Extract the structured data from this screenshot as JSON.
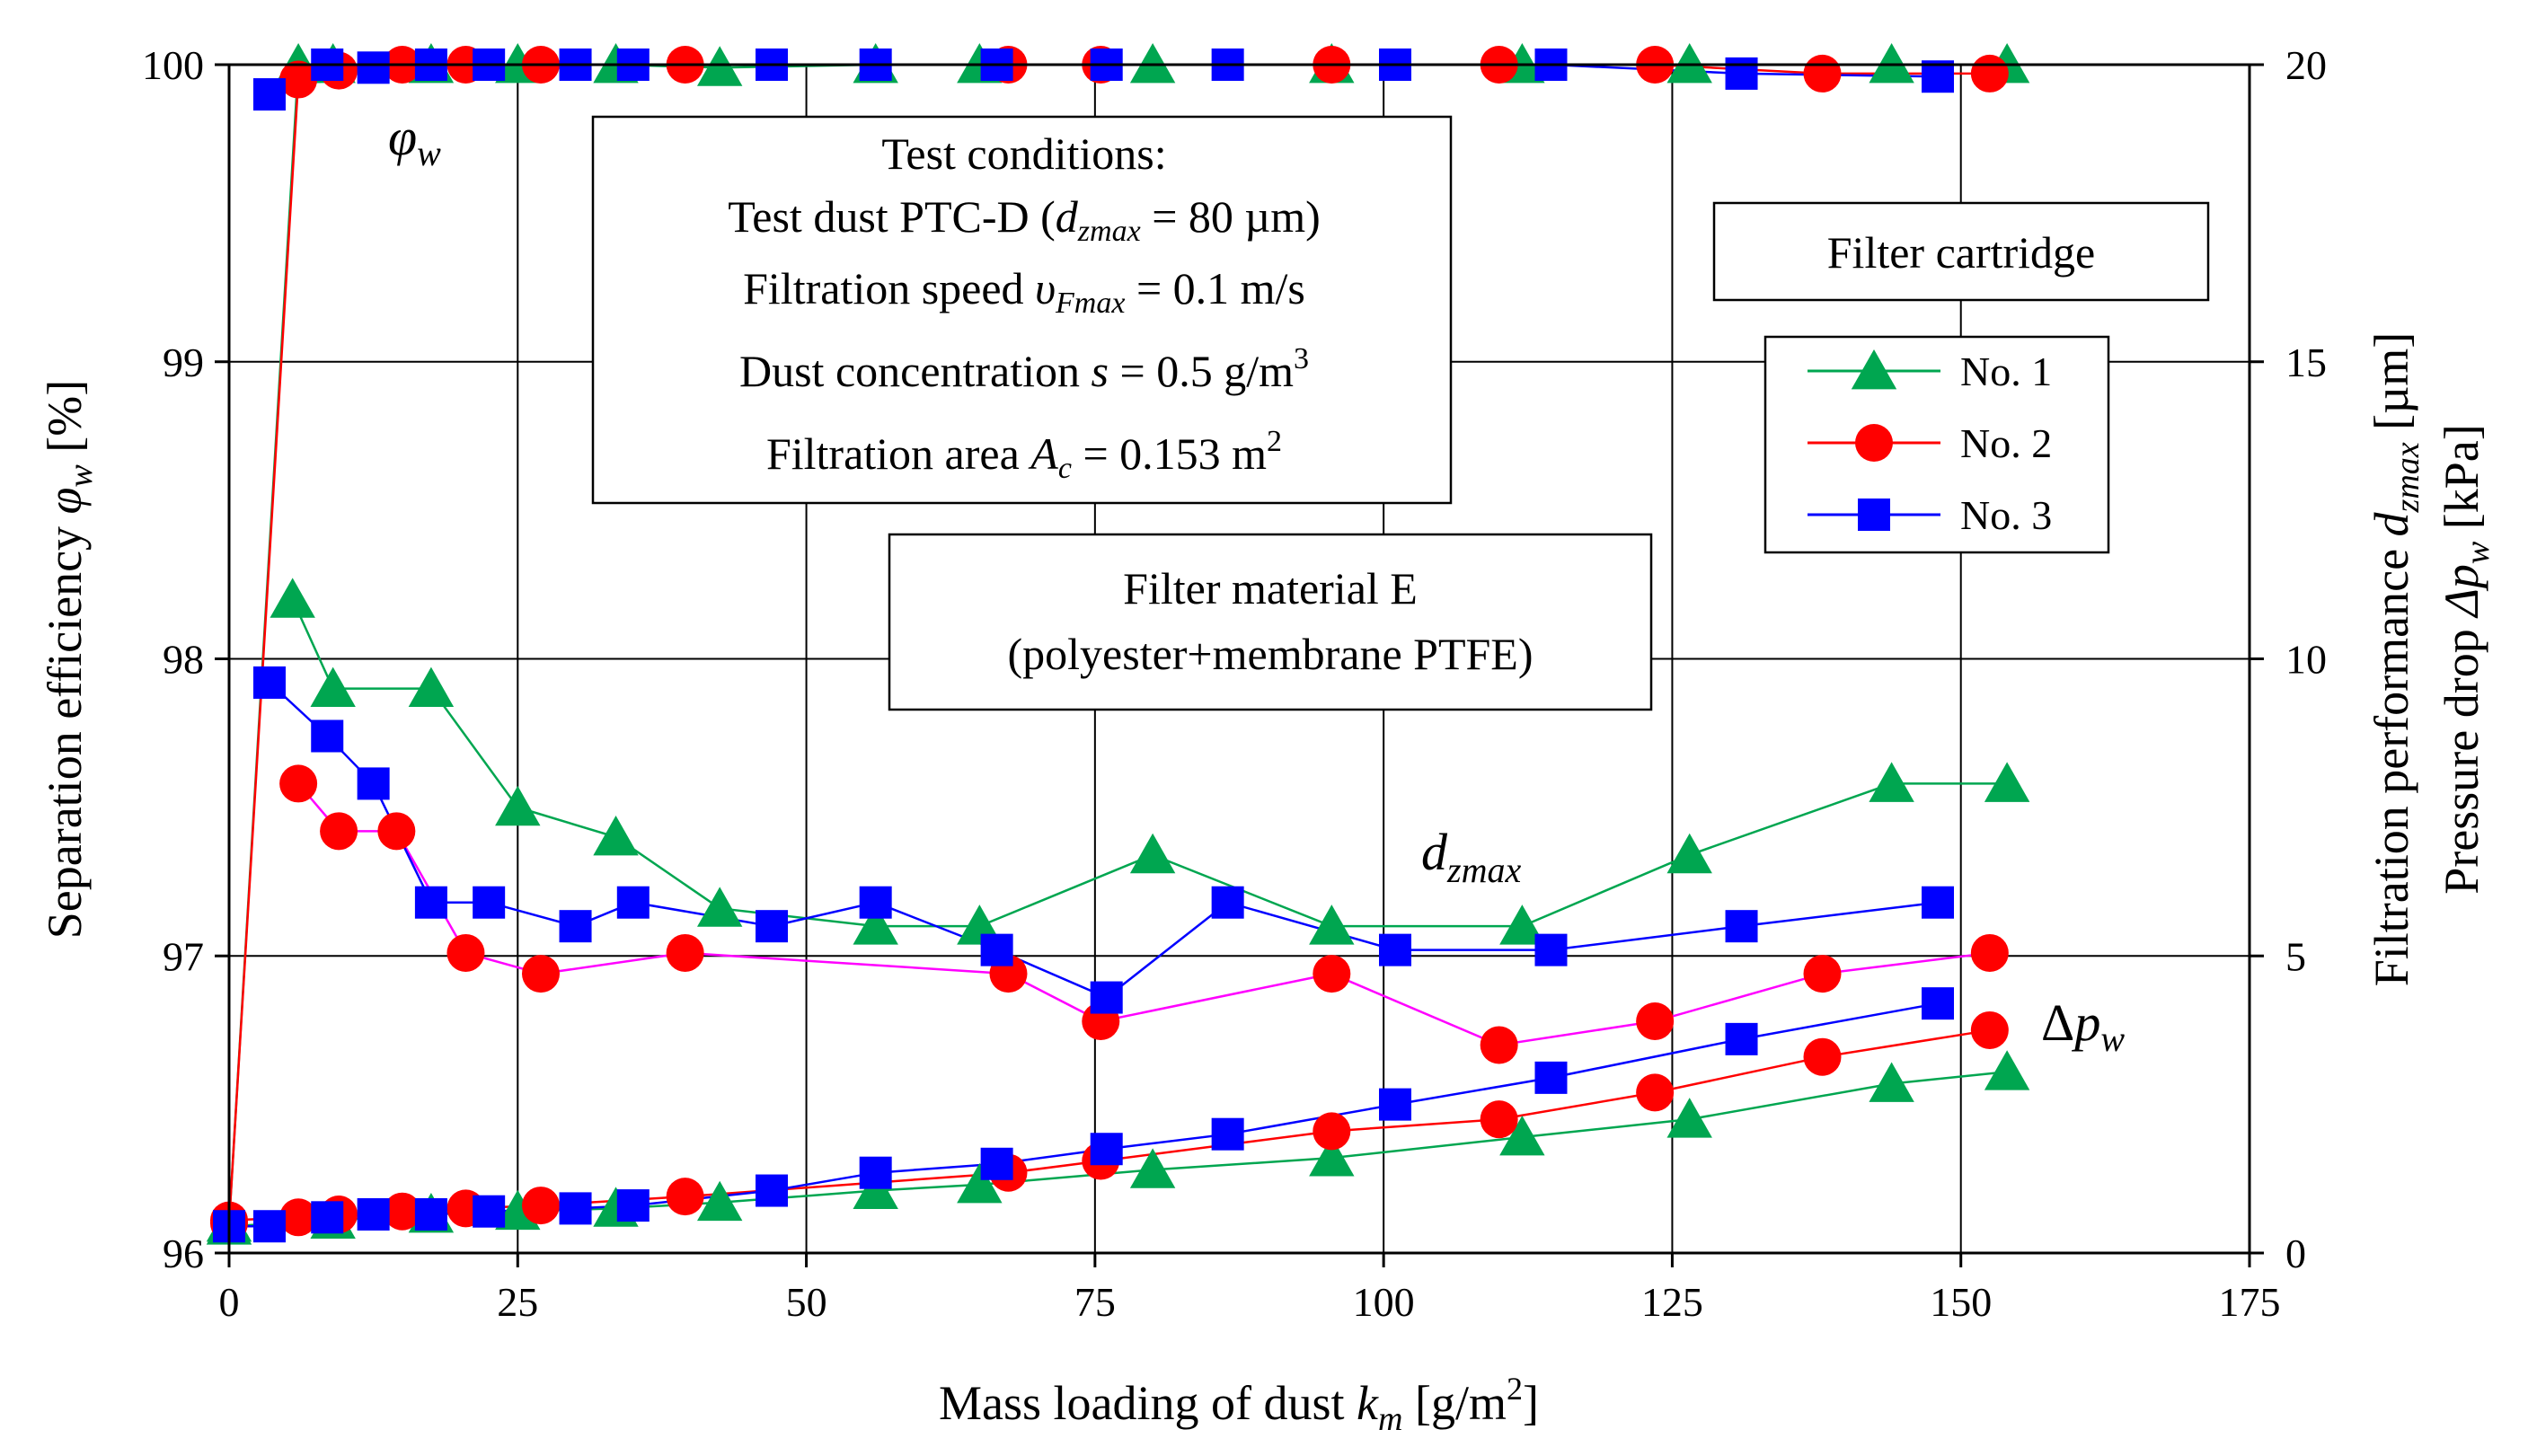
{
  "chart_data": {
    "type": "line",
    "x_axis": {
      "label": "Mass loading of dust",
      "label_var": "k",
      "label_var_sub": "m",
      "label_unit": "[g/m2]",
      "label_unit_pre": "[g/m",
      "label_unit_sup": "2",
      "label_unit_post": "]",
      "range": [
        0,
        175
      ],
      "ticks": [
        "0",
        "25",
        "50",
        "75",
        "100",
        "125",
        "150",
        "175"
      ]
    },
    "y_axis_left": {
      "label": "Separation efficiency",
      "label_var": "φ",
      "label_var_sub": "w",
      "label_unit": "[%]",
      "range": [
        96,
        100
      ],
      "ticks": [
        "96",
        "97",
        "98",
        "99",
        "100"
      ]
    },
    "y_axis_right": {
      "label_line1": "Filtration performance",
      "label_line1_var": "d",
      "label_line1_sub": "zmax",
      "label_line1_unit": "[µm]",
      "label_line2": "Pressure drop",
      "label_line2_var": "Δp",
      "label_line2_sub": "w",
      "label_line2_unit": "[kPa]",
      "range": [
        0,
        20
      ],
      "ticks": [
        "0",
        "5",
        "10",
        "15",
        "20"
      ]
    },
    "grid": true,
    "legend": {
      "title": "Filter cartridge",
      "placement": "right",
      "entries": [
        "No. 1",
        "No. 2",
        "No. 3"
      ]
    },
    "series_colors": {
      "No. 1": "#00a650",
      "No. 2": "#ff0000",
      "No. 3": "#0000ff",
      "No. 2 dzmax line": "#ff00ff"
    },
    "annotations": {
      "phi": {
        "var": "φ",
        "sub": "w"
      },
      "dzmax": {
        "var": "d",
        "sub": "zmax"
      },
      "dp": {
        "pre": "Δ",
        "var": "p",
        "sub": "w"
      }
    },
    "conditions_box": {
      "title": "Test conditions:",
      "line1": {
        "pre": "Test dust PTC-D (",
        "var": "d",
        "sub": "zmax",
        "post": " = 80 µm)"
      },
      "line2": {
        "pre": "Filtration speed  ",
        "var": "υ",
        "sub": "Fmax",
        "post": " = 0.1 m/s"
      },
      "line3": {
        "pre": "Dust concentration ",
        "var": "s",
        "post": " = 0.5 g/m",
        "sup": "3"
      },
      "line4": {
        "pre": "Filtration area ",
        "var": "A",
        "sub": "c",
        "post": " = 0.153 m",
        "sup": "2"
      }
    },
    "material_box": {
      "line1": "Filter material E",
      "line2": "(polyester+membrane  PTFE)"
    },
    "series": [
      {
        "name": "No. 1",
        "quantity": "separation efficiency",
        "axis": "left",
        "x": [
          0,
          6,
          9,
          17.5,
          25,
          33.5,
          42.5,
          56,
          65,
          80,
          95.5,
          112,
          126.5,
          144,
          154
        ],
        "y": [
          96.1,
          100,
          100,
          100,
          100,
          100,
          99.99,
          100,
          100,
          100,
          100,
          100,
          100,
          100,
          100
        ]
      },
      {
        "name": "No. 2",
        "quantity": "separation efficiency",
        "axis": "left",
        "x": [
          0,
          6,
          9.5,
          15,
          20.5,
          27,
          39.5,
          67.5,
          75.5,
          95.5,
          110,
          123.5,
          138,
          152.5
        ],
        "y": [
          96.1,
          99.95,
          99.98,
          100,
          100,
          100,
          100,
          100,
          100,
          100,
          100,
          100,
          99.97,
          99.97
        ]
      },
      {
        "name": "No. 3",
        "quantity": "separation efficiency",
        "axis": "left",
        "x": [
          3.5,
          8.5,
          12.5,
          17.5,
          22.5,
          30,
          35,
          47,
          56,
          66.5,
          76,
          86.5,
          101,
          114.5,
          131,
          148
        ],
        "y": [
          99.9,
          100,
          99.99,
          100,
          100,
          100,
          100,
          100,
          100,
          100,
          100,
          100,
          100,
          100,
          99.97,
          99.96
        ]
      },
      {
        "name": "No. 1",
        "quantity": "filtration performance dzmax",
        "axis": "right",
        "x": [
          5.5,
          9,
          17.5,
          25,
          33.5,
          42.5,
          56,
          65,
          80,
          95.5,
          112,
          126.5,
          144,
          154
        ],
        "y": [
          11,
          9.5,
          9.5,
          7.5,
          7,
          5.8,
          5.5,
          5.5,
          6.7,
          5.5,
          5.5,
          6.7,
          7.9,
          7.9
        ]
      },
      {
        "name": "No. 2",
        "quantity": "filtration performance dzmax",
        "axis": "right",
        "x": [
          6,
          9.5,
          14.5,
          20.5,
          27,
          39.5,
          67.5,
          75.5,
          95.5,
          110,
          123.5,
          138,
          152.5
        ],
        "y": [
          7.9,
          7.1,
          7.1,
          5.05,
          4.7,
          5.05,
          4.7,
          3.9,
          4.7,
          3.5,
          3.9,
          4.7,
          5.05
        ]
      },
      {
        "name": "No. 3",
        "quantity": "filtration performance dzmax",
        "axis": "right",
        "x": [
          3.5,
          8.5,
          12.5,
          17.5,
          22.5,
          30,
          35,
          47,
          56,
          66.5,
          76,
          86.5,
          101,
          114.5,
          131,
          148
        ],
        "y": [
          9.6,
          8.7,
          7.9,
          5.9,
          5.9,
          5.5,
          5.9,
          5.5,
          5.9,
          5.1,
          4.3,
          5.9,
          5.1,
          5.1,
          5.5,
          5.9
        ]
      },
      {
        "name": "No. 1",
        "quantity": "pressure drop",
        "axis": "right",
        "x": [
          0,
          9,
          17.5,
          25,
          33.5,
          42.5,
          56,
          65,
          80,
          95.5,
          112,
          126.5,
          144,
          154
        ],
        "y": [
          0.45,
          0.55,
          0.65,
          0.7,
          0.75,
          0.85,
          1.05,
          1.15,
          1.4,
          1.6,
          1.95,
          2.25,
          2.85,
          3.05
        ]
      },
      {
        "name": "No. 2",
        "quantity": "pressure drop",
        "axis": "right",
        "x": [
          0,
          6,
          9.5,
          15,
          20.5,
          27,
          39.5,
          67.5,
          75.5,
          95.5,
          110,
          123.5,
          138,
          152.5
        ],
        "y": [
          0.55,
          0.6,
          0.65,
          0.7,
          0.75,
          0.8,
          0.95,
          1.35,
          1.55,
          2.05,
          2.25,
          2.7,
          3.3,
          3.75
        ]
      },
      {
        "name": "No. 3",
        "quantity": "pressure drop",
        "axis": "right",
        "x": [
          0,
          3.5,
          8.5,
          12.5,
          17.5,
          22.5,
          30,
          35,
          47,
          56,
          66.5,
          76,
          86.5,
          101,
          114.5,
          131,
          148
        ],
        "y": [
          0.45,
          0.45,
          0.6,
          0.65,
          0.65,
          0.7,
          0.75,
          0.8,
          1.05,
          1.35,
          1.5,
          1.75,
          2.0,
          2.5,
          2.95,
          3.6,
          4.2
        ]
      }
    ]
  }
}
